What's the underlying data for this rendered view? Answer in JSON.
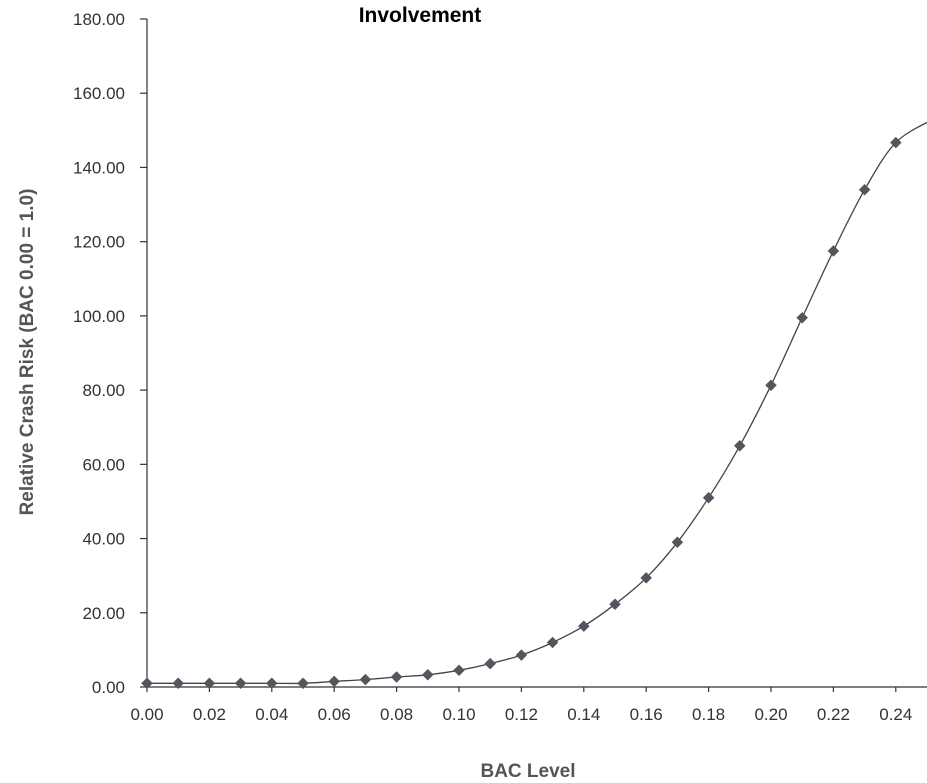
{
  "colors": {
    "line": "#444444",
    "marker": "#555560",
    "axis": "#333333",
    "text": "#333333"
  },
  "chart_data": {
    "type": "line",
    "title": "Involvement",
    "xlabel": "BAC Level",
    "ylabel": "Relative Crash Risk (BAC 0.00 = 1.0)",
    "xlim": [
      0,
      0.25
    ],
    "ylim": [
      0,
      180
    ],
    "x_ticks": [
      "0.00",
      "0.02",
      "0.04",
      "0.06",
      "0.08",
      "0.10",
      "0.12",
      "0.14",
      "0.16",
      "0.18",
      "0.20",
      "0.22",
      "0.24"
    ],
    "y_ticks": [
      "0.00",
      "20.00",
      "40.00",
      "60.00",
      "80.00",
      "100.00",
      "120.00",
      "140.00",
      "160.00",
      "180.00"
    ],
    "grid": false,
    "legend": "none",
    "series": [
      {
        "marker": "diamond",
        "x": [
          0.0,
          0.01,
          0.02,
          0.03,
          0.04,
          0.05,
          0.06,
          0.07,
          0.08,
          0.09,
          0.1,
          0.11,
          0.12,
          0.13,
          0.14,
          0.15,
          0.16,
          0.17,
          0.18,
          0.19,
          0.2,
          0.21,
          0.22,
          0.23,
          0.24
        ],
        "y": [
          1.0,
          1.0,
          1.0,
          1.0,
          1.0,
          1.0,
          1.5,
          2.0,
          2.7,
          3.3,
          4.5,
          6.3,
          8.6,
          12.0,
          16.4,
          22.3,
          29.4,
          39.0,
          51.0,
          65.0,
          81.3,
          99.5,
          117.5,
          134.0,
          146.7
        ]
      }
    ],
    "line_extends_to": {
      "x": 0.252,
      "y": 153.0
    }
  }
}
